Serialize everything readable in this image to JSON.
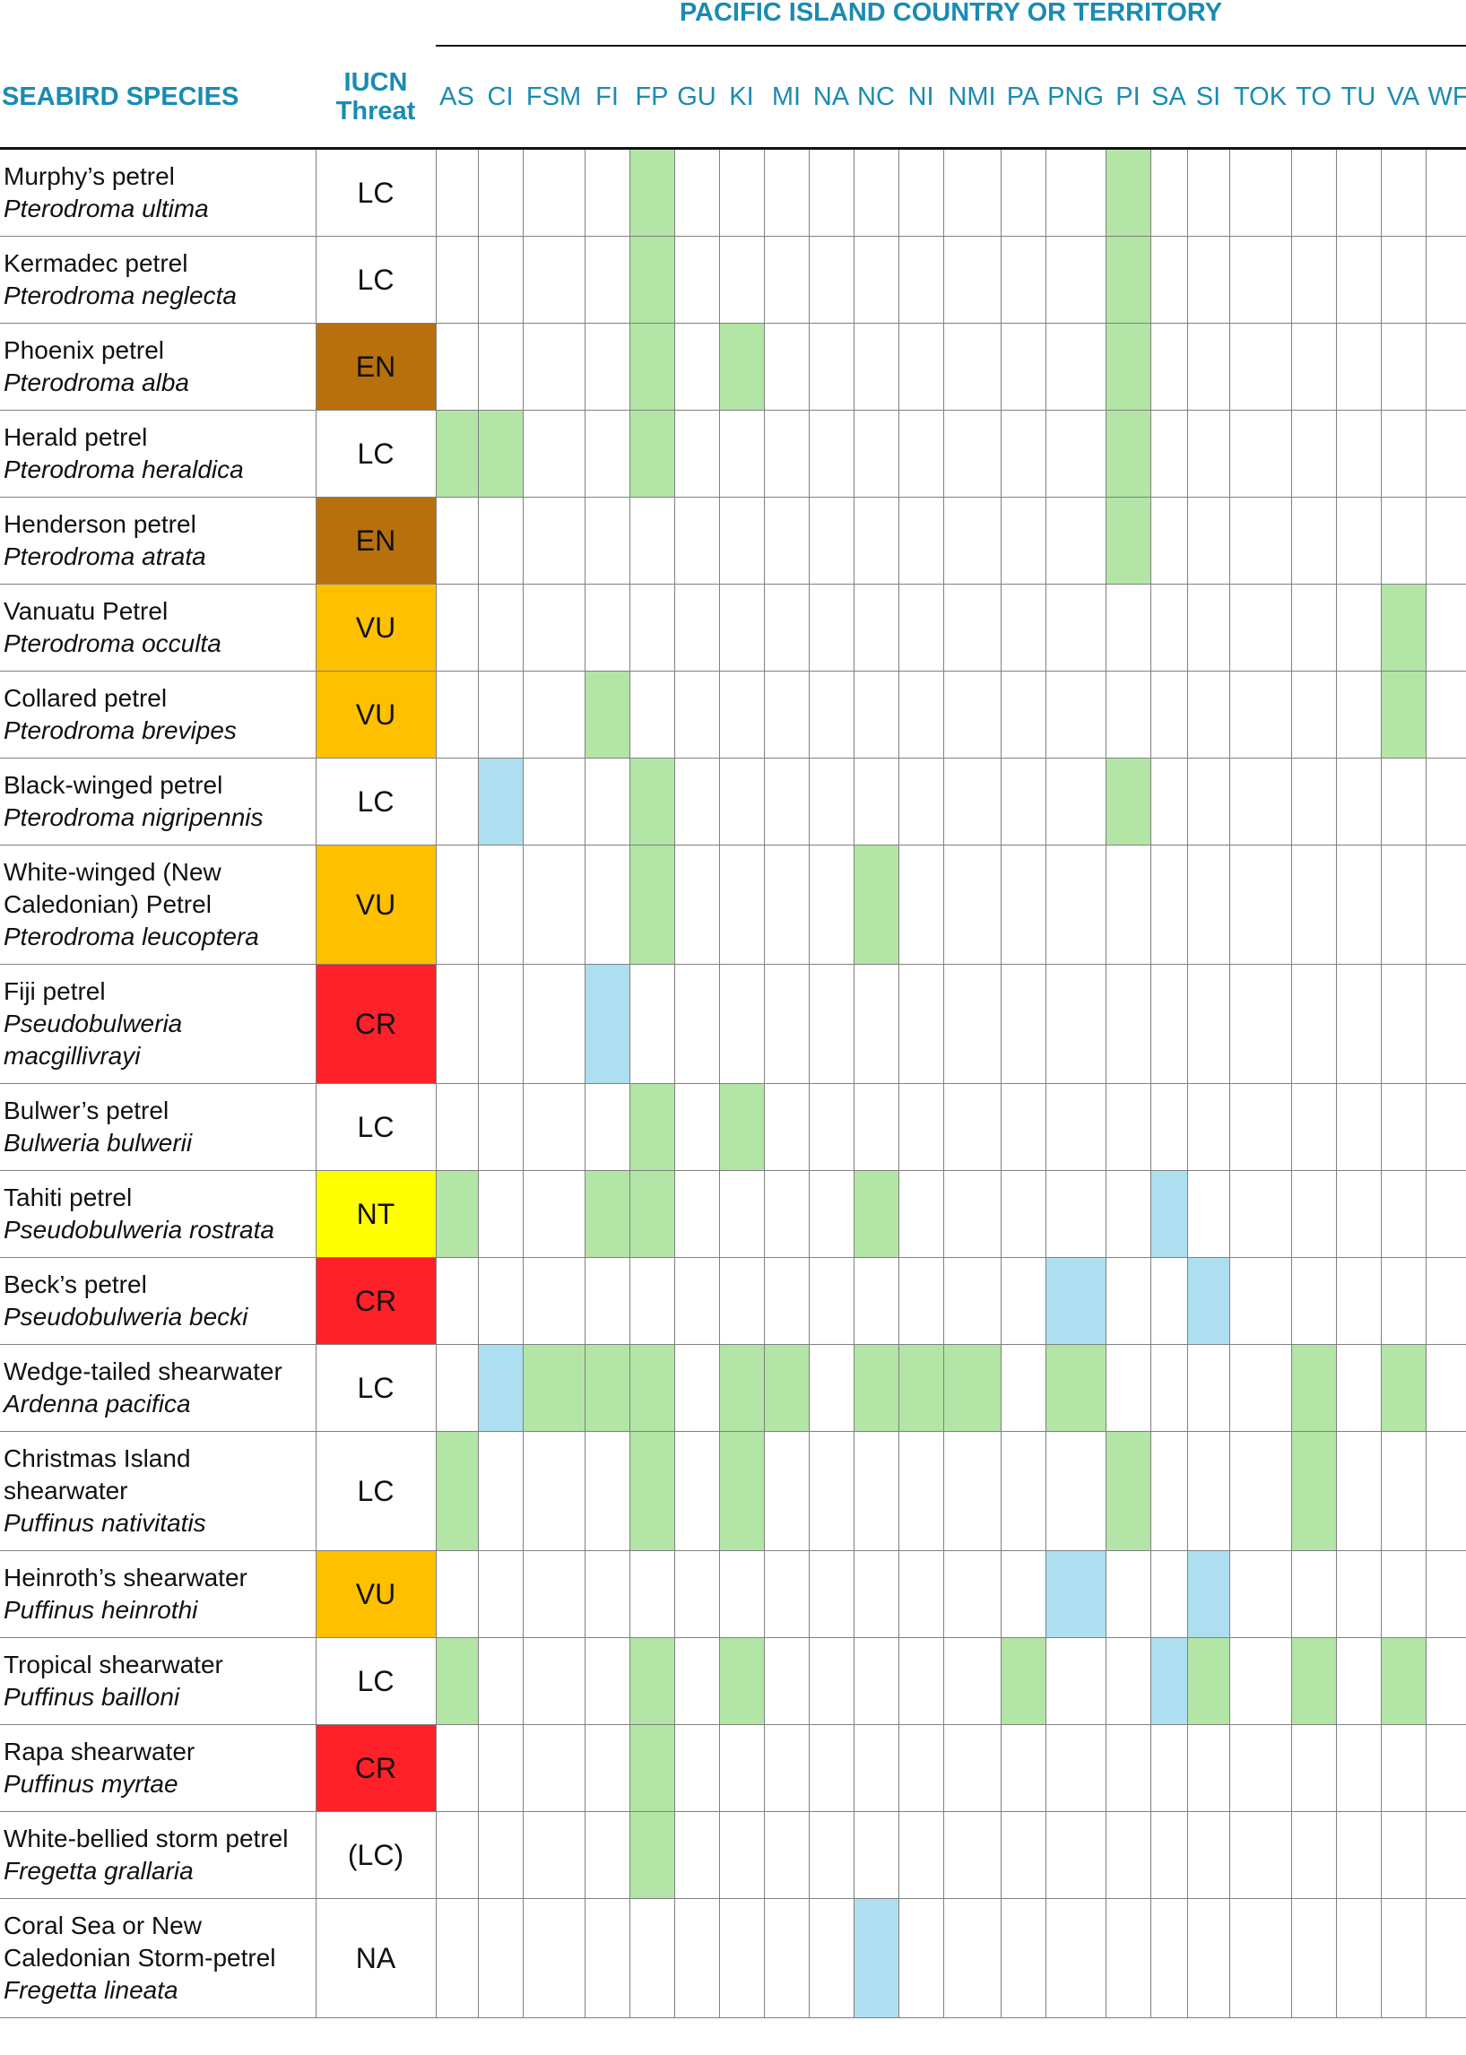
{
  "header": {
    "title": "PACIFIC ISLAND COUNTRY OR TERRITORY"
  },
  "columns": {
    "species": "SEABIRD SPECIES",
    "threat": "IUCN Threat",
    "countries": [
      "AS",
      "CI",
      "FSM",
      "FI",
      "FP",
      "GU",
      "KI",
      "MI",
      "NA",
      "NC",
      "NI",
      "NMI",
      "PA",
      "PNG",
      "PI",
      "SA",
      "SI",
      "TOK",
      "TO",
      "TU",
      "VA",
      "WF"
    ]
  },
  "rows": [
    {
      "common": "Murphy’s petrel",
      "scientific": "Pterodroma ultima",
      "threat": "LC",
      "threat_color": "#ffffff",
      "cells": [
        null,
        null,
        null,
        null,
        "#b3e5a6",
        null,
        null,
        null,
        null,
        null,
        null,
        null,
        null,
        null,
        "#b3e5a6",
        null,
        null,
        null,
        null,
        null,
        null,
        null
      ]
    },
    {
      "common": "Kermadec petrel",
      "scientific": "Pterodroma neglecta",
      "threat": "LC",
      "threat_color": "#ffffff",
      "cells": [
        null,
        null,
        null,
        null,
        "#b3e5a6",
        null,
        null,
        null,
        null,
        null,
        null,
        null,
        null,
        null,
        "#b3e5a6",
        null,
        null,
        null,
        null,
        null,
        null,
        null
      ]
    },
    {
      "common": "Phoenix petrel",
      "scientific": "Pterodroma alba",
      "threat": "EN",
      "threat_color": "#b8700c",
      "cells": [
        null,
        null,
        null,
        null,
        "#b3e5a6",
        null,
        "#b3e5a6",
        null,
        null,
        null,
        null,
        null,
        null,
        null,
        "#b3e5a6",
        null,
        null,
        null,
        null,
        null,
        null,
        null
      ]
    },
    {
      "common": "Herald petrel",
      "scientific": "Pterodroma heraldica",
      "threat": "LC",
      "threat_color": "#ffffff",
      "cells": [
        "#b3e5a6",
        "#b3e5a6",
        null,
        null,
        "#b3e5a6",
        null,
        null,
        null,
        null,
        null,
        null,
        null,
        null,
        null,
        "#b3e5a6",
        null,
        null,
        null,
        null,
        null,
        null,
        null
      ]
    },
    {
      "common": "Henderson petrel",
      "scientific": "Pterodroma atrata",
      "threat": "EN",
      "threat_color": "#b8700c",
      "cells": [
        null,
        null,
        null,
        null,
        null,
        null,
        null,
        null,
        null,
        null,
        null,
        null,
        null,
        null,
        "#b3e5a6",
        null,
        null,
        null,
        null,
        null,
        null,
        null
      ]
    },
    {
      "common": "Vanuatu Petrel",
      "scientific": "Pterodroma occulta",
      "threat": "VU",
      "threat_color": "#ffc000",
      "cells": [
        null,
        null,
        null,
        null,
        null,
        null,
        null,
        null,
        null,
        null,
        null,
        null,
        null,
        null,
        null,
        null,
        null,
        null,
        null,
        null,
        "#b3e5a6",
        null
      ]
    },
    {
      "common": "Collared petrel",
      "scientific": "Pterodroma brevipes",
      "threat": "VU",
      "threat_color": "#ffc000",
      "cells": [
        null,
        null,
        null,
        "#b3e5a6",
        null,
        null,
        null,
        null,
        null,
        null,
        null,
        null,
        null,
        null,
        null,
        null,
        null,
        null,
        null,
        null,
        "#b3e5a6",
        null
      ]
    },
    {
      "common": "Black-winged petrel",
      "scientific": "Pterodroma nigripennis",
      "threat": "LC",
      "threat_color": "#ffffff",
      "cells": [
        null,
        "#addff0",
        null,
        null,
        "#b3e5a6",
        null,
        null,
        null,
        null,
        null,
        null,
        null,
        null,
        null,
        "#b3e5a6",
        null,
        null,
        null,
        null,
        null,
        null,
        null
      ]
    },
    {
      "common": "White-winged (New Caledonian) Petrel",
      "scientific": "Pterodroma leucoptera",
      "threat": "VU",
      "threat_color": "#ffc000",
      "cells": [
        null,
        null,
        null,
        null,
        "#b3e5a6",
        null,
        null,
        null,
        null,
        "#b3e5a6",
        null,
        null,
        null,
        null,
        null,
        null,
        null,
        null,
        null,
        null,
        null,
        null
      ]
    },
    {
      "common": "Fiji petrel",
      "scientific": "Pseudobulweria macgillivrayi",
      "threat": "CR",
      "threat_color": "#ff2129",
      "cells": [
        null,
        null,
        null,
        "#addff0",
        null,
        null,
        null,
        null,
        null,
        null,
        null,
        null,
        null,
        null,
        null,
        null,
        null,
        null,
        null,
        null,
        null,
        null
      ]
    },
    {
      "common": "Bulwer’s petrel",
      "scientific": "Bulweria bulwerii",
      "threat": "LC",
      "threat_color": "#ffffff",
      "cells": [
        null,
        null,
        null,
        null,
        "#b3e5a6",
        null,
        "#b3e5a6",
        null,
        null,
        null,
        null,
        null,
        null,
        null,
        null,
        null,
        null,
        null,
        null,
        null,
        null,
        null
      ]
    },
    {
      "common": "Tahiti petrel",
      "scientific": "Pseudobulweria rostrata",
      "threat": "NT",
      "threat_color": "#ffff00",
      "cells": [
        "#b3e5a6",
        null,
        null,
        "#b3e5a6",
        "#b3e5a6",
        null,
        null,
        null,
        null,
        "#b3e5a6",
        null,
        null,
        null,
        null,
        null,
        "#addff0",
        null,
        null,
        null,
        null,
        null,
        null
      ]
    },
    {
      "common": "Beck’s petrel",
      "scientific": "Pseudobulweria becki",
      "threat": "CR",
      "threat_color": "#ff2129",
      "cells": [
        null,
        null,
        null,
        null,
        null,
        null,
        null,
        null,
        null,
        null,
        null,
        null,
        null,
        "#addff0",
        null,
        null,
        "#addff0",
        null,
        null,
        null,
        null,
        null
      ]
    },
    {
      "common": "Wedge-tailed shearwater",
      "scientific": "Ardenna pacifica",
      "threat": "LC",
      "threat_color": "#ffffff",
      "cells": [
        null,
        "#addff0",
        "#b3e5a6",
        "#b3e5a6",
        "#b3e5a6",
        null,
        "#b3e5a6",
        "#b3e5a6",
        null,
        "#b3e5a6",
        "#b3e5a6",
        "#b3e5a6",
        null,
        "#b3e5a6",
        null,
        null,
        null,
        null,
        "#b3e5a6",
        null,
        "#b3e5a6",
        null
      ]
    },
    {
      "common": "Christmas Island shearwater",
      "scientific": "Puffinus nativitatis",
      "threat": "LC",
      "threat_color": "#ffffff",
      "cells": [
        "#b3e5a6",
        null,
        null,
        null,
        "#b3e5a6",
        null,
        "#b3e5a6",
        null,
        null,
        null,
        null,
        null,
        null,
        null,
        "#b3e5a6",
        null,
        null,
        null,
        "#b3e5a6",
        null,
        null,
        null
      ]
    },
    {
      "common": "Heinroth’s shearwater",
      "scientific": "Puffinus heinrothi",
      "threat": "VU",
      "threat_color": "#ffc000",
      "cells": [
        null,
        null,
        null,
        null,
        null,
        null,
        null,
        null,
        null,
        null,
        null,
        null,
        null,
        "#addff0",
        null,
        null,
        "#addff0",
        null,
        null,
        null,
        null,
        null
      ]
    },
    {
      "common": "Tropical shearwater",
      "scientific": "Puffinus bailloni",
      "threat": "LC",
      "threat_color": "#ffffff",
      "cells": [
        "#b3e5a6",
        null,
        null,
        null,
        "#b3e5a6",
        null,
        "#b3e5a6",
        null,
        null,
        null,
        null,
        null,
        "#b3e5a6",
        null,
        null,
        "#addff0",
        "#b3e5a6",
        null,
        "#b3e5a6",
        null,
        "#b3e5a6",
        null
      ]
    },
    {
      "common": "Rapa shearwater",
      "scientific": "Puffinus myrtae",
      "threat": "CR",
      "threat_color": "#ff2129",
      "cells": [
        null,
        null,
        null,
        null,
        "#b3e5a6",
        null,
        null,
        null,
        null,
        null,
        null,
        null,
        null,
        null,
        null,
        null,
        null,
        null,
        null,
        null,
        null,
        null
      ]
    },
    {
      "common": "White-bellied storm petrel",
      "scientific": "Fregetta grallaria",
      "name_layout": "inline",
      "threat": "(LC)",
      "threat_color": "#ffffff",
      "cells": [
        null,
        null,
        null,
        null,
        "#b3e5a6",
        null,
        null,
        null,
        null,
        null,
        null,
        null,
        null,
        null,
        null,
        null,
        null,
        null,
        null,
        null,
        null,
        null
      ]
    },
    {
      "common": "Coral Sea or New Caledonian Storm-petrel",
      "scientific": "Fregetta lineata",
      "threat": "NA",
      "threat_color": "#ffffff",
      "cells": [
        null,
        null,
        null,
        null,
        null,
        null,
        null,
        null,
        null,
        "#addff0",
        null,
        null,
        null,
        null,
        null,
        null,
        null,
        null,
        null,
        null,
        null,
        null
      ]
    }
  ]
}
